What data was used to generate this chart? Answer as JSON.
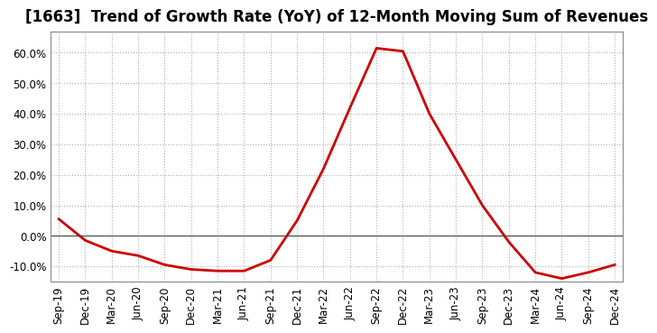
{
  "title": "[1663]  Trend of Growth Rate (YoY) of 12-Month Moving Sum of Revenues",
  "x_labels": [
    "Sep-19",
    "Dec-19",
    "Mar-20",
    "Jun-20",
    "Sep-20",
    "Dec-20",
    "Mar-21",
    "Jun-21",
    "Sep-21",
    "Dec-21",
    "Mar-22",
    "Jun-22",
    "Sep-22",
    "Dec-22",
    "Mar-23",
    "Jun-23",
    "Sep-23",
    "Dec-23",
    "Mar-24",
    "Jun-24",
    "Sep-24",
    "Dec-24"
  ],
  "y_values": [
    5.5,
    -1.5,
    -5.0,
    -6.5,
    -9.5,
    -11.0,
    -11.5,
    -11.5,
    -8.0,
    5.0,
    22.0,
    42.0,
    61.5,
    60.5,
    40.0,
    25.0,
    10.0,
    -2.0,
    -12.0,
    -14.0,
    -12.0,
    -9.5
  ],
  "line_color": "#cc0000",
  "line_width": 2.0,
  "background_color": "#ffffff",
  "plot_bg_color": "#ffffff",
  "grid_color": "#b0b0b0",
  "ylim": [
    -15,
    67
  ],
  "yticks": [
    -10.0,
    0.0,
    10.0,
    20.0,
    30.0,
    40.0,
    50.0,
    60.0
  ],
  "zero_line_color": "#444444",
  "title_fontsize": 12,
  "tick_fontsize": 8.5
}
